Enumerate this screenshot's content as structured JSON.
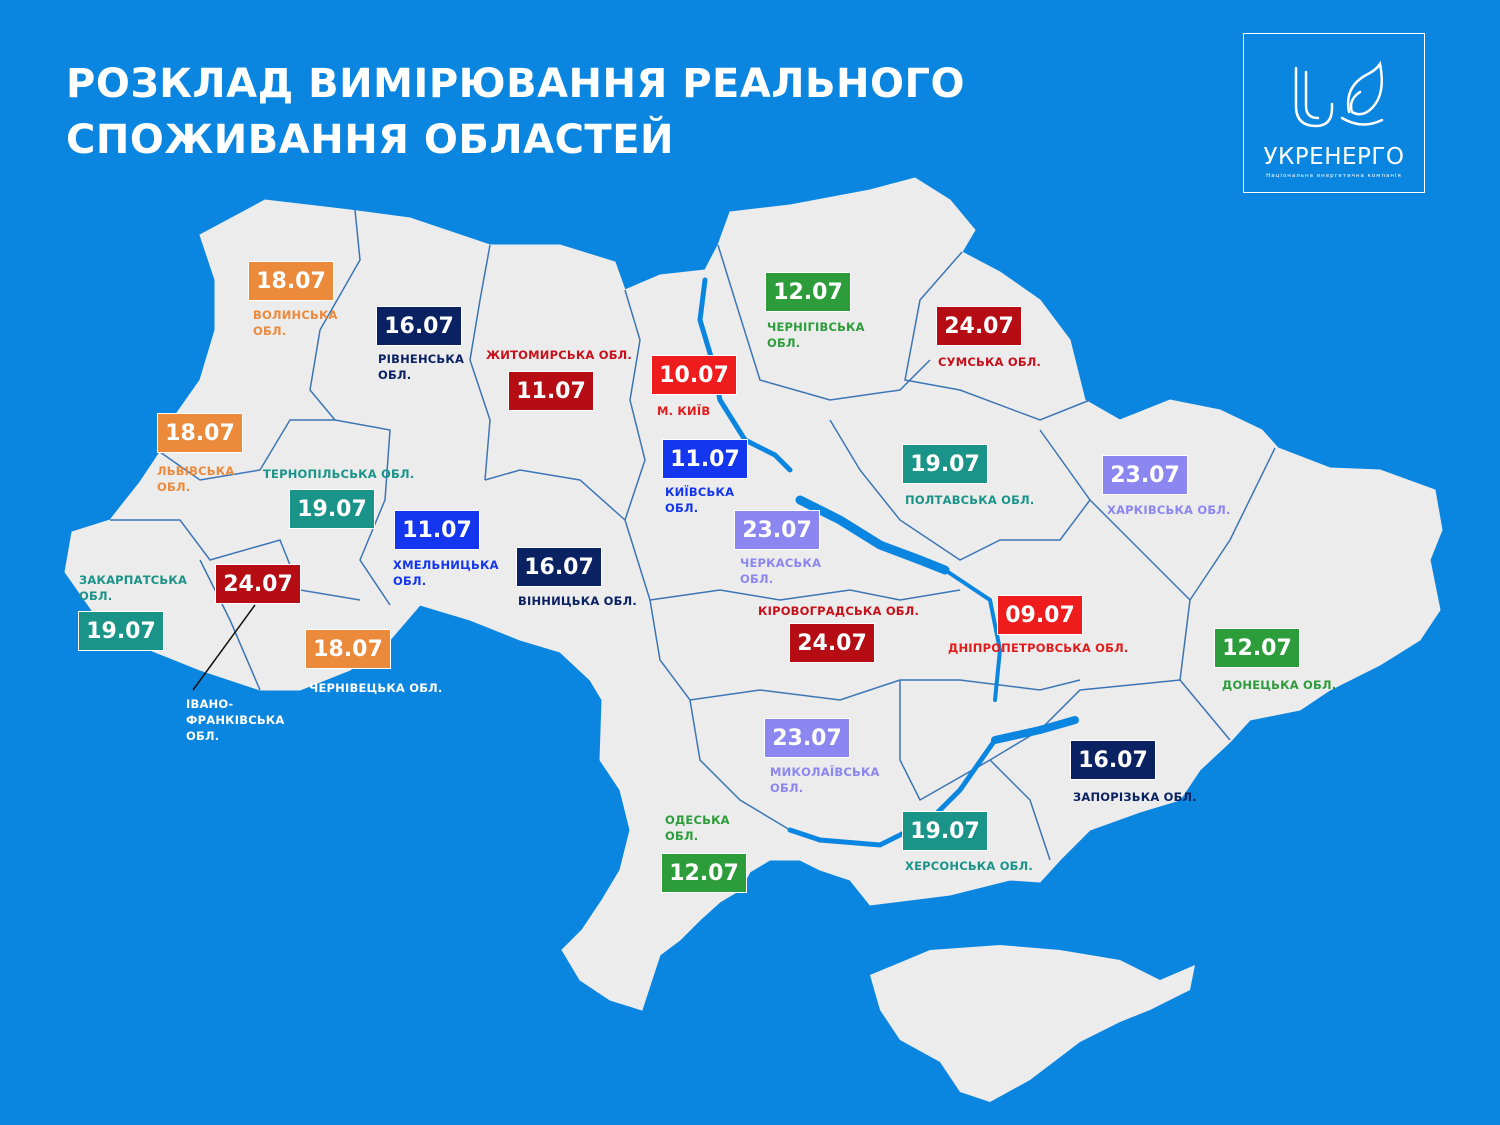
{
  "title": "РОЗКЛАД ВИМІРЮВАННЯ РЕАЛЬНОГО\nСПОЖИВАННЯ ОБЛАСТЕЙ",
  "logo": {
    "name": "УКРЕНЕРГО",
    "tagline": "Національна енергетична компанія"
  },
  "colors": {
    "background": "#0a86e0",
    "land": "#ececec",
    "border": "#3c75b5"
  },
  "regions": [
    {
      "name": "ВОЛИНСЬКА\nОБЛ.",
      "date": "18.07",
      "color": "#ec8a3c",
      "label_color": "#ec8a3c"
    },
    {
      "name": "РІВНЕНСЬКА\nОБЛ.",
      "date": "16.07",
      "color": "#0b2262",
      "label_color": "#0b2262"
    },
    {
      "name": "ЖИТОМИРСЬКА ОБЛ.",
      "date": "11.07",
      "color": "#b60d15",
      "label_color": "#c8101a"
    },
    {
      "name": "М. КИЇВ",
      "date": "10.07",
      "color": "#ee1c1c",
      "label_color": "#e41b1b"
    },
    {
      "name": "ЧЕРНІГІВСЬКА\nОБЛ.",
      "date": "12.07",
      "color": "#2d9c3b",
      "label_color": "#2d9c3b"
    },
    {
      "name": "СУМСЬКА ОБЛ.",
      "date": "24.07",
      "color": "#b60d15",
      "label_color": "#c8101a"
    },
    {
      "name": "ЛЬВІВСЬКА\nОБЛ.",
      "date": "18.07",
      "color": "#ec8a3c",
      "label_color": "#ec8a3c"
    },
    {
      "name": "ТЕРНОПІЛЬСЬКА ОБЛ.",
      "date": "19.07",
      "color": "#1a9488",
      "label_color": "#1a9488"
    },
    {
      "name": "ХМЕЛЬНИЦЬКА\nОБЛ.",
      "date": "11.07",
      "color": "#1436ef",
      "label_color": "#1436ef"
    },
    {
      "name": "КИЇВСЬКА\nОБЛ.",
      "date": "11.07",
      "color": "#1436ef",
      "label_color": "#1436ef"
    },
    {
      "name": "ЧЕРКАСЬКА\nОБЛ.",
      "date": "23.07",
      "color": "#8b86f0",
      "label_color": "#8b86f0"
    },
    {
      "name": "ВІННИЦЬКА ОБЛ.",
      "date": "16.07",
      "color": "#0b2262",
      "label_color": "#0b2262"
    },
    {
      "name": "ПОЛТАВСЬКА ОБЛ.",
      "date": "19.07",
      "color": "#1a9488",
      "label_color": "#1a9488"
    },
    {
      "name": "ХАРКІВСЬКА ОБЛ.",
      "date": "23.07",
      "color": "#8b86f0",
      "label_color": "#8b86f0"
    },
    {
      "name": "ЗАКАРПАТСЬКА\nОБЛ.",
      "date": "19.07",
      "color": "#1a9488",
      "label_color": "#1a9488"
    },
    {
      "name": "ІВАНО-\nФРАНКІВСЬКА\nОБЛ.",
      "date": "24.07",
      "color": "#b60d15",
      "label_color": "#ffffff"
    },
    {
      "name": "ЧЕРНІВЕЦЬКА ОБЛ.",
      "date": "18.07",
      "color": "#ec8a3c",
      "label_color": "#ffffff"
    },
    {
      "name": "КІРОВОГРАДСЬКА ОБЛ.",
      "date": "24.07",
      "color": "#b60d15",
      "label_color": "#c8101a"
    },
    {
      "name": "ДНІПРОПЕТРОВСЬКА ОБЛ.",
      "date": "09.07",
      "color": "#ee1c1c",
      "label_color": "#e41b1b"
    },
    {
      "name": "ДОНЕЦЬКА ОБЛ.",
      "date": "12.07",
      "color": "#2d9c3b",
      "label_color": "#2d9c3b"
    },
    {
      "name": "МИКОЛАЇВСЬКА\nОБЛ.",
      "date": "23.07",
      "color": "#8b86f0",
      "label_color": "#8b86f0"
    },
    {
      "name": "ЗАПОРІЗЬКА ОБЛ.",
      "date": "16.07",
      "color": "#0b2262",
      "label_color": "#0b2262"
    },
    {
      "name": "ОДЕСЬКА\nОБЛ.",
      "date": "12.07",
      "color": "#2d9c3b",
      "label_color": "#2d9c3b"
    },
    {
      "name": "ХЕРСОНСЬКА ОБЛ.",
      "date": "19.07",
      "color": "#1a9488",
      "label_color": "#1a9488"
    }
  ]
}
